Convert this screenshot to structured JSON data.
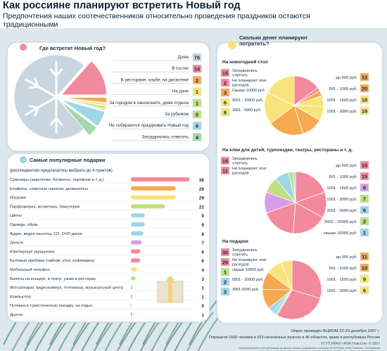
{
  "header": {
    "title": "Как россияне планируют встретить Новый год",
    "subtitle": "Предпочтения наших соотечественников относительно проведения праздников остаются традиционными"
  },
  "colors": {
    "panel": "#ffffff",
    "panel_border": "#c6d4df",
    "bg": "#dde7ee",
    "snowflake": "#c9d6e0",
    "number_box": "#f2f5f8",
    "number_text": "#1a2a3a"
  },
  "footer": {
    "survey_line1": "Опрос проведён ВЦИОМ 22-23 декабря 2007 г.",
    "survey_line2": "Опрошено 1600 человек в 153 населённых пунктах в 46 областях, краях и республиках России",
    "credit": "©ГУП РИАН «РИА Новости» © 2007",
    "fine_print": "Распространение этой публикации возможно только с письменного согласия ©ГУП РИАН «РИА Новости». По вопросам распространения обращайтесь по телефону +7 (495) 645-6601 (# 7251) или e-mail: infographics@rian.ru"
  },
  "chart_data": [
    {
      "id": "where",
      "type": "pie",
      "title": "Где встретят Новый год?",
      "categories": [
        "Дома",
        "В гостях",
        "В ресторане, клубе, на дискотеке",
        "На даче",
        "За городом в пансионате, доме отдыха",
        "За рубежом",
        "Не собираются праздновать Новый год",
        "Затруднились ответить"
      ],
      "values": [
        76,
        14,
        2,
        1,
        1,
        0,
        6,
        4
      ],
      "colors": [
        "#c9d6e0",
        "#f3899c",
        "#f6a94e",
        "#f8e47a",
        "#bfe07f",
        "#bfe07f",
        "#9cd7e8",
        "#a6d6a8"
      ]
    },
    {
      "id": "gifts",
      "type": "bar",
      "title": "Самые популярные подарки",
      "subtitle": "(респондентам предлагалось выбрать до 4 пунктов)",
      "categories": [
        "Сувениры (заколочки, блокноты, портмоне и т. д.)",
        "Конфеты, спиртные напитки, деликатесы",
        "Игрушки",
        "Парфюмерия, косметика, бижутерия",
        "Цветы",
        "Одежда, обувь",
        "Аудио, видео кассеты, CD, DVD диски",
        "Деньги",
        "Ювелирные украшения",
        "Бытовые приборы (чайник, утюг, кофеварка)",
        "Мобильный телефон",
        "Билеты на концерт, в театр, узник в ресторан",
        "Фотоаппарат, видеокамера, телевизор, музыкальный центр",
        "Компьютер",
        "Путевка в туристическую поездку, на отдых",
        "Другое"
      ],
      "values": [
        38,
        29,
        29,
        22,
        9,
        9,
        8,
        7,
        6,
        6,
        4,
        3,
        1,
        1,
        0,
        1
      ],
      "colors": [
        "#f3899c",
        "#f6a94e",
        "#f8e47a",
        "#bfe07f",
        "#9cd7e8",
        "#9cd7e8",
        "#9cd7e8",
        "#d79ee8",
        "#f3899c",
        "#f3899c",
        "#f8e47a",
        "#bfe07f",
        "#9cd7e8",
        "#9cd7e8",
        "#bfe07f",
        "#d79ee8"
      ]
    },
    {
      "id": "money",
      "type": "pie",
      "title": "Сколько денег планируют потратить?",
      "panels": [
        {
          "id": "table",
          "title": "На новогодний стол",
          "categories": [
            "Затруднились ответить",
            "Не планируют этих расходов",
            "Свыше 10000 руб.",
            "5001 - 10000 руб.",
            "3001 - 5000 руб.",
            "до 500 руб.",
            "501 - 1000 руб.",
            "1001 - 1500 руб.",
            "1501 - 3000 руб."
          ],
          "values": [
            15,
            2,
            3,
            6,
            8,
            12,
            20,
            18,
            18
          ],
          "colors": [
            "#f3899c",
            "#f3899c",
            "#f6a94e",
            "#f8e47a",
            "#f8e47a",
            "#f6a94e",
            "#f6a94e",
            "#f8e47a",
            "#f8e47a"
          ]
        },
        {
          "id": "trips",
          "title": "На елки для детей, турпоездки, театры, рестораны и т. д.",
          "categories": [
            "Затруднились ответить",
            "Не планируют этих расходов",
            "до 500 руб.",
            "501 - 1000 руб.",
            "1001 - 1500 руб.",
            "1501 - 3000 руб.",
            "3001 - 5000 руб.",
            "5001 - 10000 руб.",
            "свыше 10000 руб."
          ],
          "values": [
            16,
            11,
            15,
            15,
            9,
            7,
            6,
            2,
            1
          ],
          "colors": [
            "#f3899c",
            "#f3899c",
            "#f3899c",
            "#f3899c",
            "#d79ee8",
            "#bfe07f",
            "#9cd7e8",
            "#bfe07f",
            "#9cd7e8"
          ]
        },
        {
          "id": "giftspend",
          "title": "На подарки",
          "categories": [
            "Затруднились ответить",
            "Не планируют этих расходов",
            "свыше 10000 руб.",
            "5001 - 10000 руб.",
            "3001-5000 руб.",
            "до 500 руб.",
            "501 - 1000 руб.",
            "1001 - 1500 руб.",
            "1501 - 3000 руб."
          ],
          "values": [
            30,
            29,
            1,
            2,
            3,
            11,
            10,
            9,
            6
          ],
          "colors": [
            "#f3899c",
            "#f3899c",
            "#bfe07f",
            "#9cd7e8",
            "#9cd7e8",
            "#f6a94e",
            "#f6a94e",
            "#f8e47a",
            "#f8e47a"
          ]
        }
      ]
    }
  ]
}
